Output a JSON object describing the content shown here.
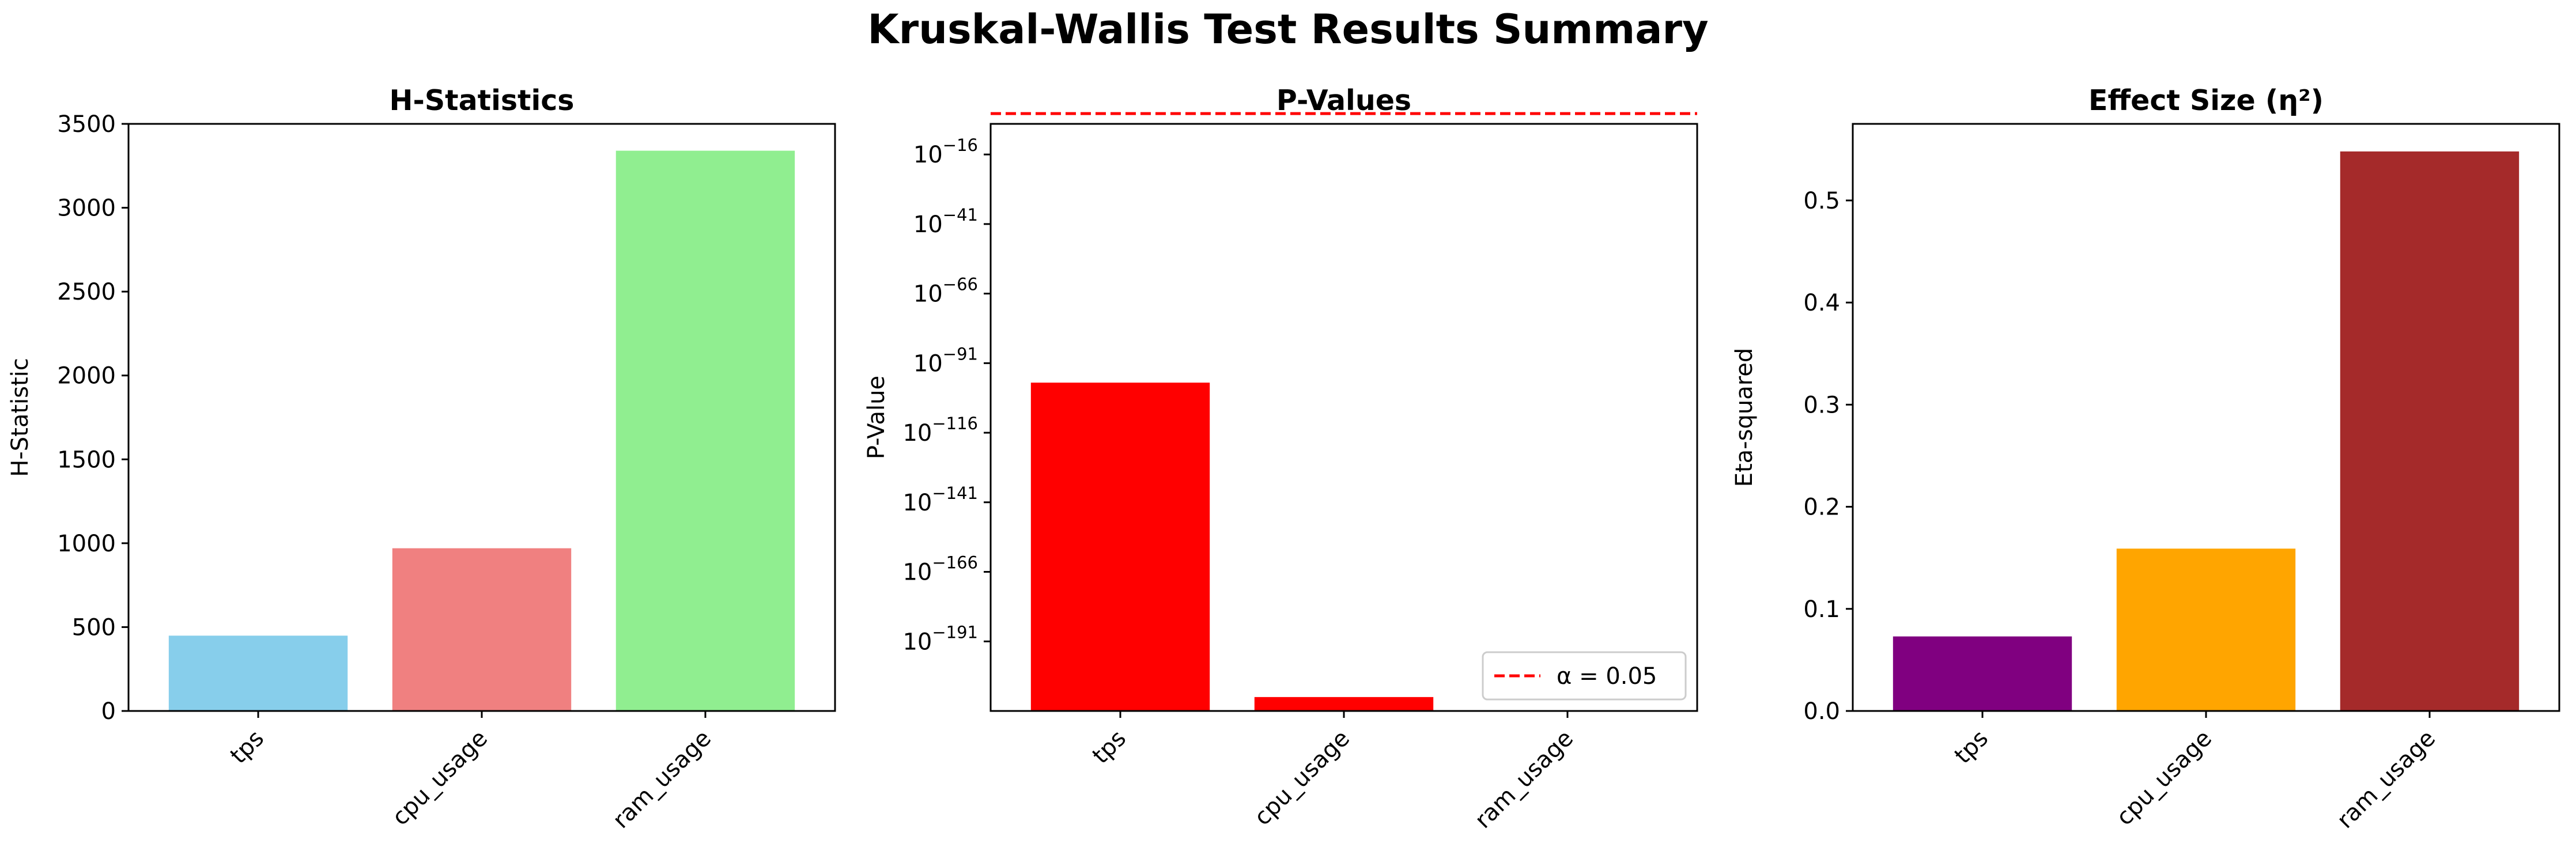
{
  "figure": {
    "title": "Kruskal-Wallis Test Results Summary"
  },
  "chart_data": [
    {
      "type": "bar",
      "title": "H-Statistics",
      "xlabel": "",
      "ylabel": "H-Statistic",
      "categories": [
        "tps",
        "cpu_usage",
        "ram_usage"
      ],
      "values": [
        449,
        970,
        3340
      ],
      "colors": [
        "#87ceeb",
        "#f08080",
        "#90ee90"
      ],
      "ylim": [
        0,
        3500
      ],
      "yticks": [
        0,
        500,
        1000,
        1500,
        2000,
        2500,
        3000,
        3500
      ],
      "ytick_labels": [
        "0",
        "500",
        "1000",
        "1500",
        "2000",
        "2500",
        "3000",
        "3500"
      ],
      "grid": false
    },
    {
      "type": "bar",
      "title": "P-Values",
      "xlabel": "",
      "ylabel": "P-Value",
      "yscale": "log",
      "categories": [
        "tps",
        "cpu_usage",
        "ram_usage"
      ],
      "values": [
        1e-98,
        1e-211,
        0
      ],
      "colors": [
        "#ff0000",
        "#ff0000",
        "#ff0000"
      ],
      "ylim": [
        1e-216,
        1e-05
      ],
      "yticks": [
        1e-16,
        1e-41,
        1e-66,
        1e-91,
        1e-116,
        1e-141,
        1e-166,
        1e-191
      ],
      "ytick_labels": [
        {
          "base": "10",
          "exp": "−16"
        },
        {
          "base": "10",
          "exp": "−41"
        },
        {
          "base": "10",
          "exp": "−66"
        },
        {
          "base": "10",
          "exp": "−91"
        },
        {
          "base": "10",
          "exp": "−116"
        },
        {
          "base": "10",
          "exp": "−141"
        },
        {
          "base": "10",
          "exp": "−166"
        },
        {
          "base": "10",
          "exp": "−191"
        }
      ],
      "reference_line": {
        "value": 0.05,
        "label": "α = 0.05",
        "color": "#ff0000",
        "style": "dashed"
      },
      "legend": {
        "placement": "lower-right",
        "entries": [
          "α = 0.05"
        ]
      },
      "grid": false
    },
    {
      "type": "bar",
      "title": "Effect Size (η²)",
      "xlabel": "",
      "ylabel": "Eta-squared",
      "categories": [
        "tps",
        "cpu_usage",
        "ram_usage"
      ],
      "values": [
        0.073,
        0.159,
        0.548
      ],
      "colors": [
        "#800080",
        "#ffa500",
        "#a52a2a"
      ],
      "ylim": [
        0,
        0.575
      ],
      "yticks": [
        0,
        0.1,
        0.2,
        0.3,
        0.4,
        0.5
      ],
      "ytick_labels": [
        "0.0",
        "0.1",
        "0.2",
        "0.3",
        "0.4",
        "0.5"
      ],
      "grid": false
    }
  ]
}
